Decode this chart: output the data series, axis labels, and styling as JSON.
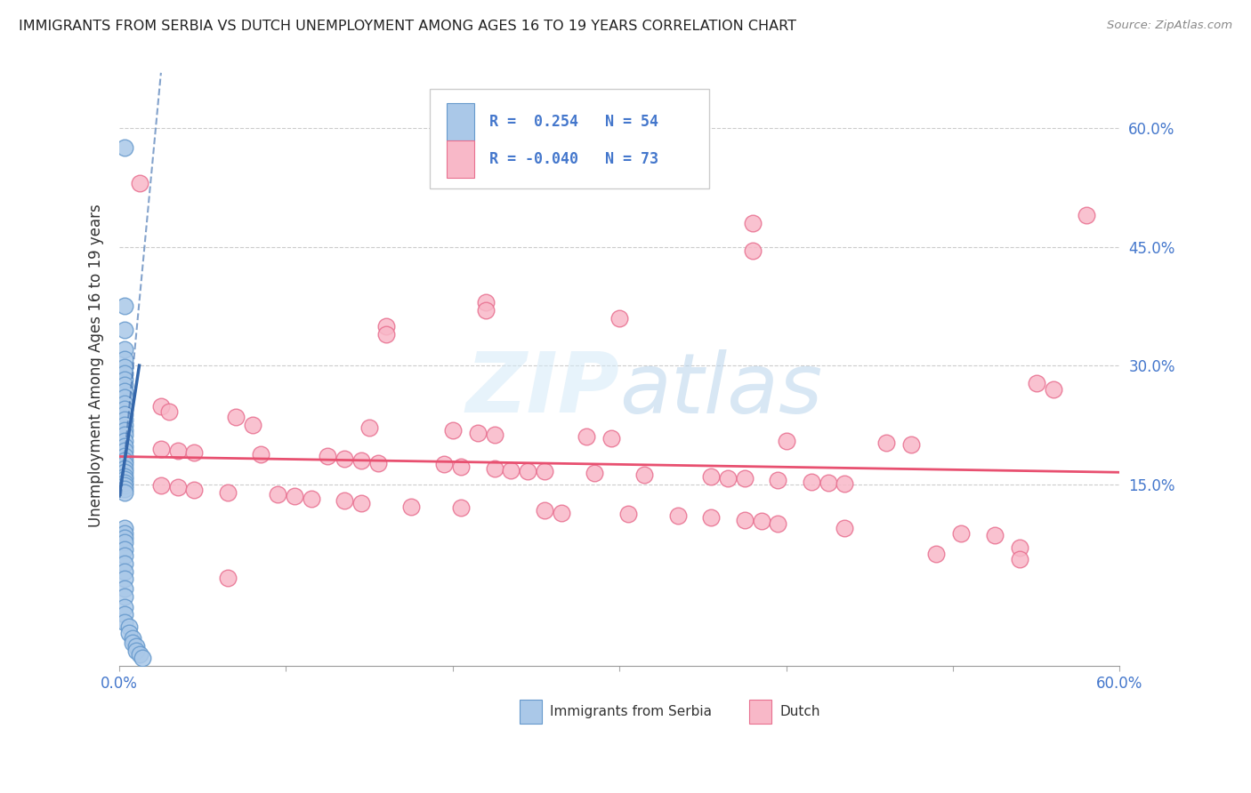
{
  "title": "IMMIGRANTS FROM SERBIA VS DUTCH UNEMPLOYMENT AMONG AGES 16 TO 19 YEARS CORRELATION CHART",
  "source": "Source: ZipAtlas.com",
  "ylabel": "Unemployment Among Ages 16 to 19 years",
  "right_yticks": [
    0.15,
    0.3,
    0.45,
    0.6
  ],
  "right_yticklabels": [
    "15.0%",
    "30.0%",
    "45.0%",
    "60.0%"
  ],
  "xlim": [
    0.0,
    0.6
  ],
  "ylim": [
    -0.08,
    0.68
  ],
  "serbia_color_fill": "#aac8e8",
  "serbia_color_edge": "#6699cc",
  "dutch_color_fill": "#f8b8c8",
  "dutch_color_edge": "#e87090",
  "serbia_trend_color": "#3366aa",
  "dutch_trend_color": "#e85070",
  "watermark_color": "#c8dff0",
  "serbia_dots": [
    [
      0.003,
      0.575
    ],
    [
      0.003,
      0.375
    ],
    [
      0.003,
      0.345
    ],
    [
      0.003,
      0.32
    ],
    [
      0.003,
      0.308
    ],
    [
      0.003,
      0.298
    ],
    [
      0.003,
      0.29
    ],
    [
      0.003,
      0.282
    ],
    [
      0.003,
      0.275
    ],
    [
      0.003,
      0.268
    ],
    [
      0.003,
      0.26
    ],
    [
      0.003,
      0.252
    ],
    [
      0.003,
      0.245
    ],
    [
      0.003,
      0.238
    ],
    [
      0.003,
      0.232
    ],
    [
      0.003,
      0.225
    ],
    [
      0.003,
      0.218
    ],
    [
      0.003,
      0.212
    ],
    [
      0.003,
      0.205
    ],
    [
      0.003,
      0.198
    ],
    [
      0.003,
      0.192
    ],
    [
      0.003,
      0.186
    ],
    [
      0.003,
      0.18
    ],
    [
      0.003,
      0.175
    ],
    [
      0.003,
      0.17
    ],
    [
      0.003,
      0.165
    ],
    [
      0.003,
      0.16
    ],
    [
      0.003,
      0.156
    ],
    [
      0.003,
      0.152
    ],
    [
      0.003,
      0.148
    ],
    [
      0.003,
      0.144
    ],
    [
      0.003,
      0.14
    ],
    [
      0.003,
      0.095
    ],
    [
      0.003,
      0.088
    ],
    [
      0.003,
      0.082
    ],
    [
      0.003,
      0.076
    ],
    [
      0.003,
      0.068
    ],
    [
      0.003,
      0.06
    ],
    [
      0.003,
      0.05
    ],
    [
      0.003,
      0.04
    ],
    [
      0.003,
      0.03
    ],
    [
      0.003,
      0.018
    ],
    [
      0.003,
      0.008
    ],
    [
      0.003,
      -0.005
    ],
    [
      0.003,
      -0.015
    ],
    [
      0.003,
      -0.025
    ],
    [
      0.006,
      -0.03
    ],
    [
      0.006,
      -0.038
    ],
    [
      0.008,
      -0.045
    ],
    [
      0.008,
      -0.05
    ],
    [
      0.01,
      -0.055
    ],
    [
      0.01,
      -0.06
    ],
    [
      0.012,
      -0.065
    ],
    [
      0.014,
      -0.07
    ]
  ],
  "dutch_dots": [
    [
      0.012,
      0.53
    ],
    [
      0.38,
      0.48
    ],
    [
      0.58,
      0.49
    ],
    [
      0.38,
      0.445
    ],
    [
      0.22,
      0.38
    ],
    [
      0.3,
      0.36
    ],
    [
      0.16,
      0.35
    ],
    [
      0.16,
      0.34
    ],
    [
      0.22,
      0.37
    ],
    [
      0.55,
      0.278
    ],
    [
      0.56,
      0.27
    ],
    [
      0.025,
      0.248
    ],
    [
      0.03,
      0.242
    ],
    [
      0.07,
      0.235
    ],
    [
      0.08,
      0.225
    ],
    [
      0.15,
      0.222
    ],
    [
      0.2,
      0.218
    ],
    [
      0.215,
      0.215
    ],
    [
      0.225,
      0.212
    ],
    [
      0.28,
      0.21
    ],
    [
      0.295,
      0.208
    ],
    [
      0.4,
      0.205
    ],
    [
      0.46,
      0.202
    ],
    [
      0.475,
      0.2
    ],
    [
      0.025,
      0.195
    ],
    [
      0.035,
      0.192
    ],
    [
      0.045,
      0.19
    ],
    [
      0.085,
      0.188
    ],
    [
      0.125,
      0.185
    ],
    [
      0.135,
      0.182
    ],
    [
      0.145,
      0.18
    ],
    [
      0.155,
      0.177
    ],
    [
      0.195,
      0.175
    ],
    [
      0.205,
      0.172
    ],
    [
      0.225,
      0.17
    ],
    [
      0.235,
      0.168
    ],
    [
      0.245,
      0.166
    ],
    [
      0.255,
      0.166
    ],
    [
      0.285,
      0.164
    ],
    [
      0.315,
      0.162
    ],
    [
      0.355,
      0.16
    ],
    [
      0.365,
      0.158
    ],
    [
      0.375,
      0.157
    ],
    [
      0.395,
      0.155
    ],
    [
      0.415,
      0.153
    ],
    [
      0.425,
      0.152
    ],
    [
      0.435,
      0.151
    ],
    [
      0.025,
      0.148
    ],
    [
      0.035,
      0.146
    ],
    [
      0.045,
      0.143
    ],
    [
      0.065,
      0.14
    ],
    [
      0.095,
      0.137
    ],
    [
      0.105,
      0.135
    ],
    [
      0.115,
      0.132
    ],
    [
      0.135,
      0.129
    ],
    [
      0.145,
      0.126
    ],
    [
      0.175,
      0.122
    ],
    [
      0.205,
      0.12
    ],
    [
      0.255,
      0.117
    ],
    [
      0.265,
      0.114
    ],
    [
      0.305,
      0.112
    ],
    [
      0.335,
      0.11
    ],
    [
      0.355,
      0.108
    ],
    [
      0.375,
      0.105
    ],
    [
      0.385,
      0.103
    ],
    [
      0.395,
      0.1
    ],
    [
      0.435,
      0.095
    ],
    [
      0.505,
      0.088
    ],
    [
      0.525,
      0.085
    ],
    [
      0.065,
      0.032
    ],
    [
      0.49,
      0.062
    ],
    [
      0.54,
      0.07
    ],
    [
      0.54,
      0.055
    ]
  ],
  "serbia_trendline": [
    [
      0.0,
      0.135
    ],
    [
      0.012,
      0.3
    ]
  ],
  "serbia_dashed_line": [
    [
      0.001,
      0.135
    ],
    [
      0.025,
      0.67
    ]
  ],
  "dutch_trendline": [
    [
      0.0,
      0.185
    ],
    [
      0.6,
      0.165
    ]
  ]
}
